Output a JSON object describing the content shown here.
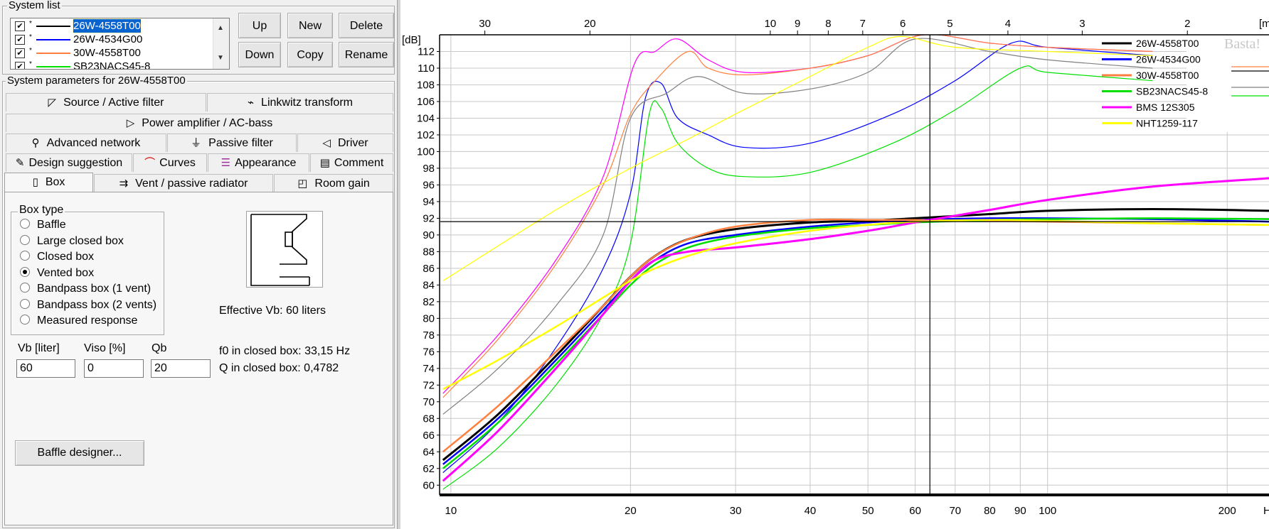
{
  "system_list": {
    "title": "System list",
    "items": [
      {
        "label": "26W-4558T00",
        "color": "#000000",
        "checked": true,
        "selected": true
      },
      {
        "label": " 26W-4534G00",
        "color": "#0000ff",
        "checked": true,
        "selected": false
      },
      {
        "label": "30W-4558T00",
        "color": "#ff7f3f",
        "checked": true,
        "selected": false
      },
      {
        "label": "SB23NACS45-8",
        "color": "#00e000",
        "checked": true,
        "selected": false
      }
    ],
    "marker": "*",
    "scroll_up": "▲",
    "scroll_down": "▼",
    "buttons": {
      "up": "Up",
      "down": "Down",
      "new": "New",
      "copy": "Copy",
      "delete": "Delete",
      "rename": "Rename"
    }
  },
  "params": {
    "title": "System parameters for 26W-4558T00",
    "tabs_row1": [
      {
        "label": "Source / Active filter",
        "icon": "◸"
      },
      {
        "label": "Linkwitz transform",
        "icon": "⌁"
      }
    ],
    "tabs_row2": [
      {
        "label": "Power amplifier / AC-bass",
        "icon": "▷"
      }
    ],
    "tabs_row3": [
      {
        "label": "Advanced network",
        "icon": "⚲"
      },
      {
        "label": "Passive filter",
        "icon": "⏚"
      },
      {
        "label": "Driver",
        "icon": "◁"
      }
    ],
    "tabs_row4": [
      {
        "label": "Design suggestion",
        "icon": "✎"
      },
      {
        "label": "Curves",
        "icon": "⌒"
      },
      {
        "label": "Appearance",
        "icon": "☰"
      },
      {
        "label": "Comment",
        "icon": "▤"
      }
    ],
    "tabs_row5": [
      {
        "label": "Box",
        "icon": "▯"
      },
      {
        "label": "Vent / passive radiator",
        "icon": "⇉"
      },
      {
        "label": "Room gain",
        "icon": "◰"
      }
    ]
  },
  "box": {
    "group_title": "Box type",
    "types": [
      {
        "label": "Baffle",
        "selected": false
      },
      {
        "label": "Large closed box",
        "selected": false
      },
      {
        "label": "Closed box",
        "selected": false
      },
      {
        "label": "Vented box",
        "selected": true
      },
      {
        "label": "Bandpass box (1 vent)",
        "selected": false
      },
      {
        "label": "Bandpass box (2 vents)",
        "selected": false
      },
      {
        "label": "Measured response",
        "selected": false
      }
    ],
    "effective_vb": "Effective Vb: 60 liters",
    "fields": {
      "vb": {
        "label": "Vb [liter]",
        "value": "60"
      },
      "viso": {
        "label": "Viso [%]",
        "value": "0"
      },
      "qb": {
        "label": "Qb",
        "value": "20"
      }
    },
    "f0_closed": "f0 in closed box: 33,15 Hz",
    "q_closed": "Q  in closed box: 0,4782",
    "baffle_button": "Baffle designer..."
  },
  "graph": {
    "y_unit": "[dB]",
    "y_ticks": [
      60,
      62,
      64,
      66,
      68,
      70,
      72,
      74,
      76,
      78,
      80,
      82,
      84,
      86,
      88,
      90,
      92,
      94,
      96,
      98,
      100,
      102,
      104,
      106,
      108,
      110,
      112
    ],
    "x_ticks": [
      10,
      20,
      30,
      40,
      50,
      60,
      70,
      80,
      90,
      100,
      200
    ],
    "x_unit": "Hz",
    "top_ticks": [
      "30",
      "20",
      "10",
      "9",
      "8",
      "7",
      "6",
      "5",
      "4",
      "3",
      "2"
    ],
    "top_unit": "[m",
    "watermark": "Basta!",
    "cursor": {
      "freq_hz": 63.5,
      "level_db": 91.6
    },
    "legend": [
      {
        "label": "26W-4558T00",
        "color": "#000000"
      },
      {
        "label": " 26W-4534G00",
        "color": "#0000ff"
      },
      {
        "label": "30W-4558T00",
        "color": "#ff7f3f"
      },
      {
        "label": "SB23NACS45-8",
        "color": "#00e000"
      },
      {
        "label": "BMS 12S305",
        "color": "#ff00ff"
      },
      {
        "label": "NHT1259-117",
        "color": "#ffff00"
      }
    ],
    "grey_color": "#808080"
  },
  "chart_data": {
    "type": "line",
    "xlabel": "Hz",
    "ylabel": "[dB]",
    "xscale": "log",
    "xlim": [
      9.6,
      235
    ],
    "ylim": [
      59,
      114
    ],
    "grid": true,
    "legend_position": "top-right",
    "series": [
      {
        "name": "26W-4558T00",
        "color": "#000000",
        "kind": "response",
        "x": [
          9.7,
          12,
          15,
          18,
          20,
          22,
          25,
          30,
          40,
          50,
          60,
          80,
          100,
          150,
          235
        ],
        "y": [
          63.0,
          68.5,
          75.5,
          81.5,
          85.0,
          87.5,
          89.5,
          90.7,
          91.5,
          91.7,
          92.0,
          92.5,
          92.9,
          93.1,
          92.9
        ]
      },
      {
        "name": " 26W-4534G00",
        "color": "#0000ff",
        "kind": "response",
        "x": [
          9.7,
          12,
          15,
          18,
          20,
          22,
          25,
          30,
          40,
          50,
          60,
          80,
          100,
          150,
          235
        ],
        "y": [
          62.5,
          68.0,
          75.0,
          81.0,
          84.5,
          87.0,
          89.0,
          90.0,
          91.0,
          91.5,
          91.8,
          92.0,
          92.0,
          91.9,
          91.6
        ]
      },
      {
        "name": "30W-4558T00",
        "color": "#ff7f3f",
        "kind": "response",
        "x": [
          9.7,
          12,
          15,
          18,
          20,
          22,
          25,
          30,
          40,
          50,
          60,
          80,
          100,
          150,
          235
        ],
        "y": [
          64.0,
          69.5,
          76.0,
          81.5,
          85.0,
          87.5,
          89.5,
          91.0,
          91.8,
          91.8,
          91.8,
          91.7,
          91.6,
          91.4,
          91.2
        ]
      },
      {
        "name": "SB23NACS45-8",
        "color": "#00e000",
        "kind": "response",
        "x": [
          9.7,
          12,
          15,
          18,
          20,
          22,
          25,
          30,
          40,
          50,
          60,
          80,
          100,
          150,
          235
        ],
        "y": [
          62.0,
          67.5,
          74.5,
          80.5,
          84.0,
          86.5,
          88.5,
          89.8,
          90.8,
          91.2,
          91.5,
          91.8,
          91.9,
          92.0,
          91.9
        ]
      },
      {
        "name": "BMS 12S305",
        "color": "#ff00ff",
        "kind": "response",
        "x": [
          9.7,
          12,
          15,
          18,
          20,
          22,
          25,
          30,
          40,
          50,
          60,
          80,
          100,
          150,
          235
        ],
        "y": [
          60.5,
          66.5,
          74.0,
          80.5,
          84.5,
          87.0,
          88.0,
          88.5,
          89.5,
          90.5,
          91.5,
          93.0,
          94.2,
          95.8,
          96.8
        ]
      },
      {
        "name": "NHT1259-117",
        "color": "#ffff00",
        "kind": "response",
        "x": [
          9.7,
          12,
          15,
          18,
          20,
          22,
          25,
          30,
          40,
          50,
          60,
          80,
          100,
          150,
          235
        ],
        "y": [
          71.5,
          75.0,
          79.0,
          82.5,
          84.5,
          86.0,
          87.5,
          89.0,
          90.5,
          91.2,
          91.6,
          91.8,
          91.7,
          91.4,
          91.2
        ]
      },
      {
        "name": "",
        "color": "#0000ff",
        "kind": "excursion",
        "x": [
          9.7,
          12,
          15,
          18,
          20,
          21.2,
          22.5,
          24,
          27,
          31,
          40,
          55,
          70,
          87,
          100,
          150
        ],
        "y": [
          61.5,
          67.5,
          76.5,
          86.0,
          95.0,
          106.5,
          108.2,
          104.0,
          102.0,
          100.5,
          101.0,
          104.5,
          108.5,
          113.0,
          112.5,
          111.5
        ]
      },
      {
        "name": "",
        "color": "#00e000",
        "kind": "excursion",
        "x": [
          9.7,
          12,
          15,
          18,
          20,
          21.5,
          22.5,
          24,
          27,
          31,
          40,
          55,
          70,
          90,
          100,
          150
        ],
        "y": [
          59.5,
          64.5,
          72.0,
          80.5,
          89.0,
          104.5,
          105.2,
          101.0,
          98.0,
          97.0,
          97.5,
          101.0,
          105.0,
          110.0,
          109.5,
          108.5
        ]
      },
      {
        "name": "",
        "color": "#ff00ff",
        "kind": "excursion",
        "x": [
          9.7,
          12,
          15,
          18,
          20.3,
          22,
          24,
          27,
          31,
          40,
          50,
          62,
          80,
          100,
          150
        ],
        "y": [
          71.0,
          78.0,
          87.0,
          97.0,
          110.5,
          112.0,
          113.5,
          111.0,
          109.5,
          110.0,
          111.5,
          114.0,
          113.0,
          112.5,
          112.0
        ]
      },
      {
        "name": "",
        "color": "#ff7f3f",
        "kind": "excursion",
        "x": [
          9.7,
          12,
          15,
          18,
          20,
          22,
          25,
          27,
          31,
          40,
          50,
          62,
          80,
          100,
          150
        ],
        "y": [
          70.5,
          77.5,
          86.5,
          96.0,
          104.5,
          108.5,
          112.0,
          110.0,
          109.2,
          110.0,
          111.5,
          114.0,
          113.0,
          112.5,
          112.0
        ]
      },
      {
        "name": "",
        "color": "#808080",
        "kind": "excursion",
        "x": [
          9.7,
          12,
          15,
          18,
          20,
          23,
          26,
          31,
          40,
          50,
          60,
          80,
          100,
          150
        ],
        "y": [
          68.5,
          74.0,
          81.5,
          90.0,
          104.0,
          107.0,
          109.0,
          107.0,
          107.5,
          109.5,
          113.5,
          112.0,
          111.0,
          110.0
        ]
      },
      {
        "name": "",
        "color": "#ffff00",
        "kind": "excursion",
        "x": [
          9.7,
          15,
          20,
          25,
          30,
          40,
          50,
          57,
          70,
          100,
          150
        ],
        "y": [
          84.5,
          93.0,
          98.0,
          101.5,
          104.5,
          109.0,
          112.5,
          113.8,
          112.5,
          112.0,
          111.5
        ]
      }
    ]
  }
}
